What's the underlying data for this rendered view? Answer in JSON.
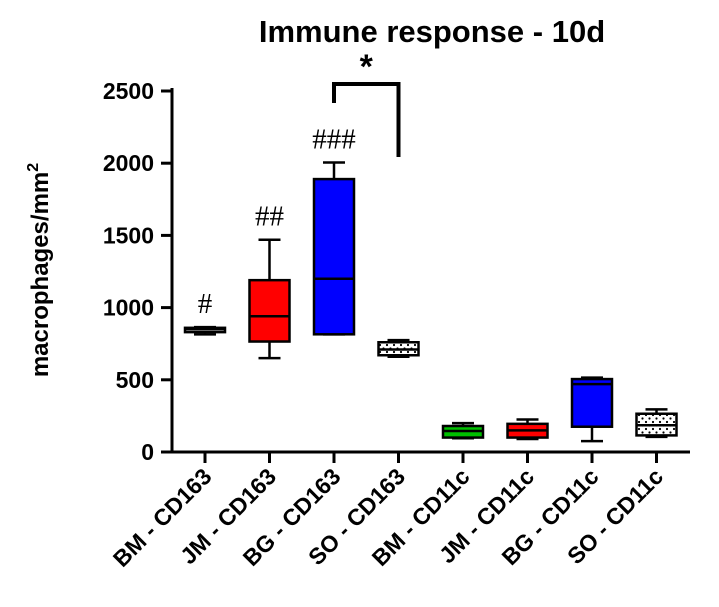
{
  "chart_data": {
    "type": "box",
    "title": "Immune response - 10d",
    "ylabel": "macrophages/mm",
    "ylabel_superscript": "2",
    "xlabel": "",
    "ylim": [
      0,
      2500
    ],
    "yticks": [
      0,
      500,
      1000,
      1500,
      2000,
      2500
    ],
    "grid": false,
    "legend": "none",
    "categories": [
      "BM - CD163",
      "JM - CD163",
      "BG - CD163",
      "SO - CD163",
      "BM - CD11c",
      "JM - CD11c",
      "BG - CD11c",
      "SO - CD11c"
    ],
    "boxes": [
      {
        "category": "BM - CD163",
        "min": 815,
        "q1": 830,
        "median": 850,
        "q3": 860,
        "max": 865,
        "color": "#ffffff",
        "pattern": "none",
        "annotation": "#"
      },
      {
        "category": "JM - CD163",
        "min": 650,
        "q1": 765,
        "median": 940,
        "q3": 1190,
        "max": 1470,
        "color": "#ff0000",
        "pattern": "none",
        "annotation": "##"
      },
      {
        "category": "BG - CD163",
        "min": 815,
        "q1": 815,
        "median": 1200,
        "q3": 1890,
        "max": 2005,
        "color": "#0000ff",
        "pattern": "none",
        "annotation": "###"
      },
      {
        "category": "SO - CD163",
        "min": 660,
        "q1": 670,
        "median": 710,
        "q3": 760,
        "max": 775,
        "color": "#ffffff",
        "pattern": "dots",
        "annotation": ""
      },
      {
        "category": "BM - CD11c",
        "min": 95,
        "q1": 100,
        "median": 145,
        "q3": 180,
        "max": 200,
        "color": "#00c000",
        "pattern": "none",
        "annotation": ""
      },
      {
        "category": "JM - CD11c",
        "min": 90,
        "q1": 100,
        "median": 150,
        "q3": 195,
        "max": 225,
        "color": "#ff0000",
        "pattern": "none",
        "annotation": ""
      },
      {
        "category": "BG - CD11c",
        "min": 75,
        "q1": 175,
        "median": 470,
        "q3": 505,
        "max": 515,
        "color": "#0000ff",
        "pattern": "none",
        "annotation": ""
      },
      {
        "category": "SO - CD11c",
        "min": 105,
        "q1": 115,
        "median": 185,
        "q3": 265,
        "max": 295,
        "color": "#ffffff",
        "pattern": "dots",
        "annotation": ""
      }
    ],
    "significance": {
      "from": "BG - CD163",
      "to": "SO - CD163",
      "label": "*"
    }
  }
}
